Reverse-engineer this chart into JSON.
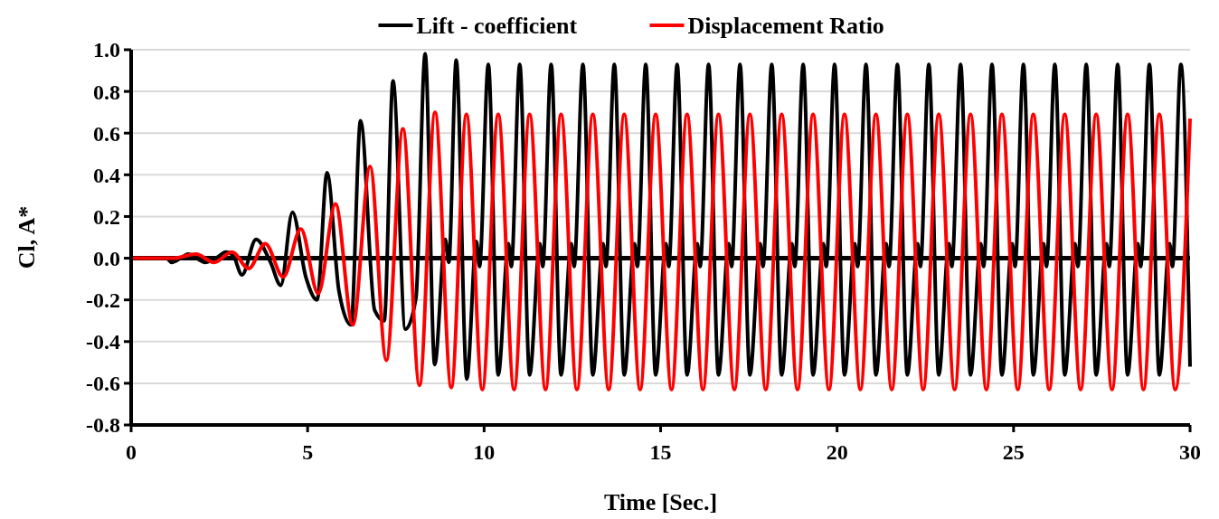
{
  "chart_data": {
    "type": "line",
    "xlabel": "Time [Sec.]",
    "ylabel": "Cl, A*",
    "xlim": [
      0,
      30
    ],
    "xticks": [
      0,
      5,
      10,
      15,
      20,
      25,
      30
    ],
    "ylim": [
      -0.8,
      1.0
    ],
    "yticks": [
      {
        "value": -0.8,
        "label": "-0.8"
      },
      {
        "value": -0.6,
        "label": "-0.6"
      },
      {
        "value": -0.4,
        "label": "-0.4"
      },
      {
        "value": -0.2,
        "label": "-0.2"
      },
      {
        "value": 0,
        "label": "0.0"
      },
      {
        "value": 0.2,
        "label": "0.2"
      },
      {
        "value": 0.4,
        "label": "0.4"
      },
      {
        "value": 0.6,
        "label": "0.6"
      },
      {
        "value": 0.8,
        "label": "0.8"
      },
      {
        "value": 1,
        "label": "1.0"
      }
    ],
    "grid": "y",
    "legend": "top",
    "marker": "none",
    "line_style": "solid",
    "ref_lines": [
      {
        "axis": "y",
        "value": 0,
        "color": "#000000"
      }
    ],
    "series": [
      {
        "name": "Lift - coefficient",
        "color": "#000000",
        "x": [
          0,
          1.0,
          1.15,
          1.4,
          1.62,
          1.85,
          2.09,
          2.4,
          2.69,
          2.9,
          3.14,
          3.54,
          3.95,
          4.24,
          4.57,
          4.95,
          5.27,
          5.55,
          5.89,
          6.23,
          6.5,
          6.9,
          7.17,
          7.42,
          7.77,
          8.07,
          8.33,
          8.6,
          8.9,
          9.0,
          9.21,
          9.51,
          9.78,
          9.87,
          10.12,
          10.4,
          10.69,
          10.77,
          11.01,
          11.29,
          11.58,
          11.66,
          11.9,
          12.18,
          12.47,
          12.55,
          12.8,
          13.08,
          13.37,
          13.45,
          13.69,
          13.97,
          14.26,
          14.34,
          14.58,
          14.86,
          15.15,
          15.23,
          15.47,
          15.75,
          16.04,
          16.12,
          16.36,
          16.64,
          16.93,
          17.01,
          17.25,
          17.53,
          17.82,
          17.9,
          18.15,
          18.43,
          18.72,
          18.8,
          19.04,
          19.32,
          19.61,
          19.69,
          19.93,
          20.21,
          20.5,
          20.58,
          20.82,
          21.1,
          21.39,
          21.47,
          21.71,
          21.99,
          22.28,
          22.36,
          22.6,
          22.88,
          23.17,
          23.25,
          23.5,
          23.78,
          24.07,
          24.15,
          24.39,
          24.67,
          24.96,
          25.04,
          25.28,
          25.56,
          25.85,
          25.93,
          26.17,
          26.45,
          26.74,
          26.82,
          27.06,
          27.34,
          27.63,
          27.71,
          27.95,
          28.23,
          28.52,
          28.6,
          28.85,
          29.13,
          29.42,
          29.5,
          29.74,
          30
        ],
        "values": [
          0,
          0,
          -0.02,
          0,
          0.02,
          0,
          -0.02,
          0,
          0.03,
          0.01,
          -0.08,
          0.09,
          -0.02,
          -0.13,
          0.22,
          -0.09,
          -0.2,
          0.41,
          -0.16,
          -0.32,
          0.66,
          -0.25,
          -0.3,
          0.85,
          -0.34,
          -0.19,
          0.98,
          -0.51,
          0.09,
          -0.02,
          0.95,
          -0.58,
          0.08,
          -0.04,
          0.93,
          -0.56,
          0.07,
          -0.04,
          0.93,
          -0.56,
          0.07,
          -0.04,
          0.93,
          -0.56,
          0.07,
          -0.04,
          0.93,
          -0.56,
          0.07,
          -0.04,
          0.93,
          -0.56,
          0.07,
          -0.04,
          0.93,
          -0.56,
          0.07,
          -0.04,
          0.93,
          -0.56,
          0.07,
          -0.04,
          0.93,
          -0.56,
          0.07,
          -0.04,
          0.93,
          -0.56,
          0.07,
          -0.04,
          0.93,
          -0.56,
          0.07,
          -0.04,
          0.93,
          -0.56,
          0.07,
          -0.04,
          0.93,
          -0.56,
          0.07,
          -0.04,
          0.93,
          -0.56,
          0.07,
          -0.04,
          0.93,
          -0.56,
          0.07,
          -0.04,
          0.93,
          -0.56,
          0.07,
          -0.04,
          0.93,
          -0.56,
          0.07,
          -0.04,
          0.93,
          -0.56,
          0.07,
          -0.04,
          0.93,
          -0.56,
          0.07,
          -0.04,
          0.93,
          -0.56,
          0.07,
          -0.04,
          0.93,
          -0.56,
          0.07,
          -0.04,
          0.93,
          -0.56,
          0.07,
          -0.04,
          0.93,
          -0.56,
          0.07,
          -0.04,
          0.93,
          -0.52
        ]
      },
      {
        "name": "Displacement Ratio",
        "color": "#ff0000",
        "x": [
          0,
          1.2,
          1.84,
          2.35,
          2.86,
          3.33,
          3.8,
          4.31,
          4.81,
          5.3,
          5.79,
          6.28,
          6.77,
          7.23,
          7.7,
          8.17,
          8.61,
          9.07,
          9.5,
          9.95,
          10.4,
          10.85,
          11.29,
          11.74,
          12.18,
          12.63,
          13.08,
          13.53,
          13.97,
          14.42,
          14.86,
          15.31,
          15.75,
          16.2,
          16.64,
          17.09,
          17.53,
          17.98,
          18.43,
          18.88,
          19.32,
          19.77,
          20.21,
          20.66,
          21.1,
          21.55,
          21.99,
          22.44,
          22.88,
          23.33,
          23.78,
          24.23,
          24.67,
          25.12,
          25.56,
          26.01,
          26.45,
          26.9,
          27.34,
          27.79,
          28.23,
          28.68,
          29.13,
          29.58,
          30
        ],
        "values": [
          0,
          0,
          0.02,
          -0.02,
          0.03,
          -0.05,
          0.07,
          -0.09,
          0.14,
          -0.17,
          0.26,
          -0.32,
          0.44,
          -0.49,
          0.62,
          -0.61,
          0.7,
          -0.62,
          0.69,
          -0.63,
          0.69,
          -0.63,
          0.69,
          -0.63,
          0.69,
          -0.63,
          0.69,
          -0.63,
          0.69,
          -0.63,
          0.69,
          -0.63,
          0.69,
          -0.63,
          0.69,
          -0.63,
          0.69,
          -0.63,
          0.69,
          -0.63,
          0.69,
          -0.63,
          0.69,
          -0.63,
          0.69,
          -0.63,
          0.69,
          -0.63,
          0.69,
          -0.63,
          0.69,
          -0.63,
          0.69,
          -0.63,
          0.69,
          -0.63,
          0.69,
          -0.63,
          0.69,
          -0.63,
          0.69,
          -0.63,
          0.69,
          -0.63,
          0.67
        ]
      }
    ]
  }
}
